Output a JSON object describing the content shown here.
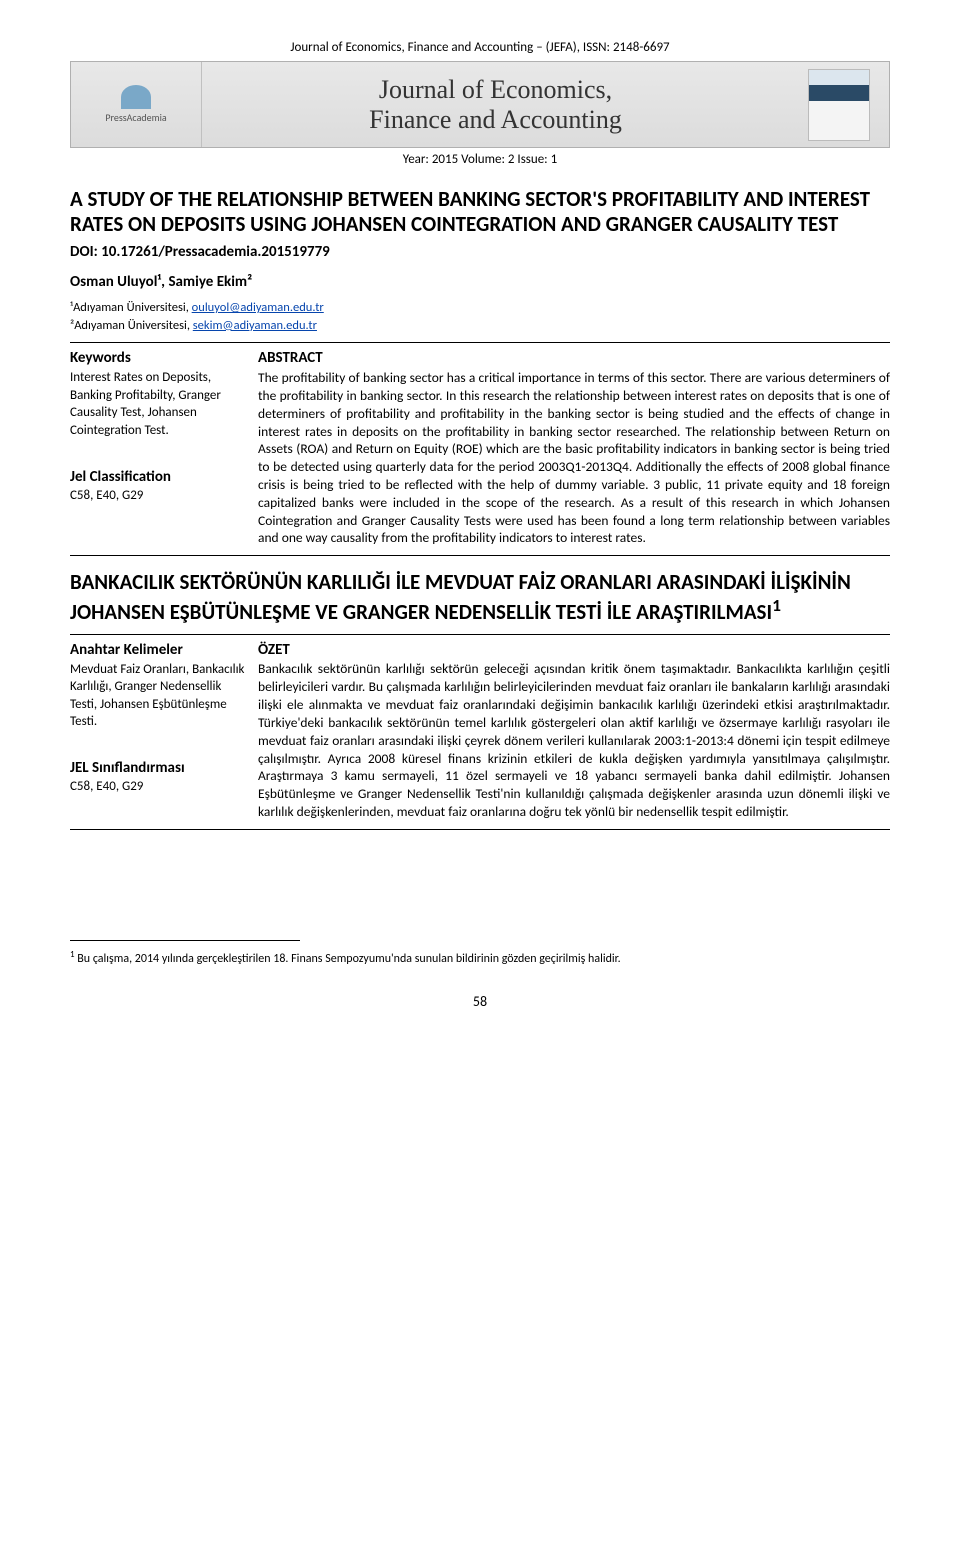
{
  "running_header": "Journal of Economics, Finance and Accounting – (JEFA), ISSN: 2148-6697",
  "banner": {
    "publisher": "PressAcademia",
    "journal_title": "Journal of Economics,\nFinance and Accounting"
  },
  "year_line": "Year: 2015   Volume: 2   Issue: 1",
  "title_en": "A STUDY OF THE RELATIONSHIP BETWEEN BANKING SECTOR'S PROFITABILITY AND INTEREST RATES ON DEPOSITS USING JOHANSEN COINTEGRATION AND GRANGER CAUSALITY TEST",
  "doi": "DOI: 10.17261/Pressacademia.201519779",
  "authors": "Osman Uluyol¹, Samiye Ekim²",
  "affil1_prefix": "¹Adıyaman Üniversitesi, ",
  "affil1_email": "ouluyol@adiyaman.edu.tr",
  "affil2_prefix": "²Adıyaman Üniversitesi, ",
  "affil2_email": "sekim@adiyaman.edu.tr",
  "en": {
    "kw_head": "Keywords",
    "kw_body": "Interest Rates on Deposits, Banking Profitabilty, Granger Causality Test, Johansen Cointegration Test.",
    "jel_head": "Jel Classification",
    "jel_body": "C58, E40, G29",
    "abs_head": "ABSTRACT",
    "abs_body": "The profitability of banking sector has a critical importance  in terms of  this  sector. There are various determiners of the profitability in banking sector. In this research the relationship between interest rates on deposits that is one of determiners of profitability and profitability in the banking sector is being studied and the effects of change in interest rates in deposits on the profitability in banking sector researched. The relationship between Return on Assets (ROA) and Return on Equity (ROE) which are the basic profitability indicators in banking sector is being tried to be detected using quarterly data for the period 2003Q1-2013Q4. Additionally the effects of 2008 global finance crisis is being tried to be reflected with the help of dummy variable. 3 public, 11 private equity and 18 foreign capitalized banks were included in the scope of the research. As a result of this research in which Johansen Cointegration and Granger Causality Tests were used has been found a long term relationship between variables and one way causality from the profitability indicators to interest rates."
  },
  "title_tr": "BANKACILIK SEKTÖRÜNÜN KARLILIĞI İLE MEVDUAT FAİZ ORANLARI ARASINDAKİ İLİŞKİNİN JOHANSEN EŞBÜTÜNLEŞME VE GRANGER NEDENSELLİK TESTİ İLE ARAŞTIRILMASI",
  "title_tr_sup": "1",
  "tr": {
    "kw_head": "Anahtar Kelimeler",
    "kw_body": "Mevduat Faiz Oranları, Bankacılık Karlılığı, Granger Nedensellik Testi, Johansen Eşbütünleşme Testi.",
    "jel_head": "JEL Sınıflandırması",
    "jel_body": "C58, E40, G29",
    "abs_head": "ÖZET",
    "abs_body": "Bankacılık sektörünün karlılığı sektörün geleceği açısından kritik önem taşımaktadır. Bankacılıkta karlılığın çeşitli belirleyicileri vardır. Bu çalışmada karlılığın belirleyicilerinden mevduat faiz oranları ile bankaların karlılığı arasındaki ilişki ele alınmakta ve mevduat faiz oranlarındaki değişimin bankacılık karlılığı üzerindeki etkisi araştırılmaktadır. Türkiye'deki bankacılık sektörünün temel karlılık göstergeleri olan aktif karlılığı ve özsermaye karlılığı rasyoları ile mevduat faiz oranları arasındaki ilişki çeyrek dönem verileri kullanılarak 2003:1-2013:4 dönemi için tespit edilmeye çalışılmıştır. Ayrıca 2008 küresel finans krizinin etkileri de kukla değişken yardımıyla yansıtılmaya çalışılmıştır. Araştırmaya 3 kamu sermayeli, 11 özel sermayeli ve 18 yabancı sermayeli banka dahil edilmiştir. Johansen Eşbütünleşme ve Granger Nedensellik Testi'nin kullanıldığı çalışmada değişkenler arasında uzun dönemli ilişki ve karlılık değişkenlerinden, mevduat faiz oranlarına doğru tek yönlü bir nedensellik tespit edilmiştir."
  },
  "footnote": " Bu çalışma, 2014  yılında  gerçekleştirilen 18. Finans Sempozyumu'nda sunulan bildirinin gözden geçirilmiş halidir.",
  "footnote_mark": "1",
  "page_num": "58",
  "colors": {
    "link": "#0645ad",
    "banner_bg_top": "#e8e8e8",
    "banner_bg_bottom": "#dcdcdc",
    "banner_border": "#b0b0b0"
  }
}
